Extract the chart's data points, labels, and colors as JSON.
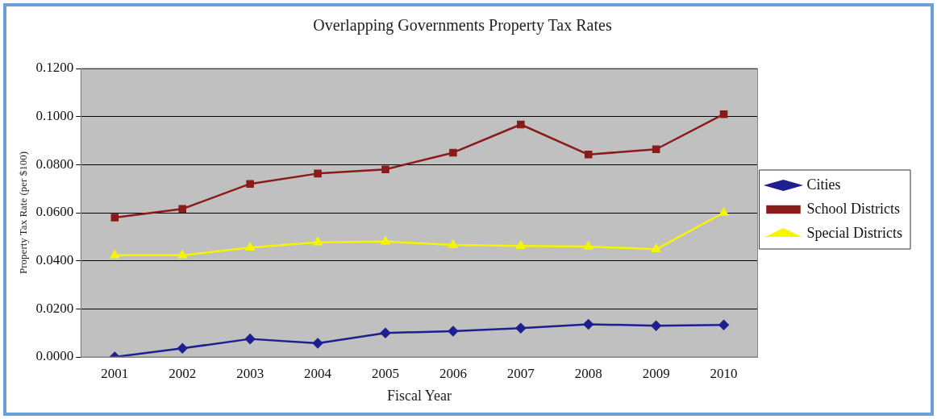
{
  "chart_data": {
    "type": "line",
    "title": "Overlapping Governments Property Tax Rates",
    "xlabel": "Fiscal Year",
    "ylabel": "Property Tax Rate (per $100)",
    "categories": [
      "2001",
      "2002",
      "2003",
      "2004",
      "2005",
      "2006",
      "2007",
      "2008",
      "2009",
      "2010"
    ],
    "series": [
      {
        "name": "Cities",
        "color": "#1f1f8f",
        "marker": "diamond",
        "values": [
          0.0,
          0.0036,
          0.0075,
          0.0057,
          0.01,
          0.0107,
          0.012,
          0.0136,
          0.013,
          0.0133
        ]
      },
      {
        "name": "School Districts",
        "color": "#8b1a1a",
        "marker": "square",
        "values": [
          0.058,
          0.0616,
          0.072,
          0.0763,
          0.078,
          0.085,
          0.0967,
          0.0842,
          0.0864,
          0.101
        ]
      },
      {
        "name": "Special Districts",
        "color": "#f5f500",
        "marker": "triangle",
        "values": [
          0.0423,
          0.0423,
          0.0455,
          0.0477,
          0.048,
          0.0466,
          0.0462,
          0.0459,
          0.0448,
          0.06
        ]
      }
    ],
    "ylim": [
      0,
      0.12
    ],
    "yticks": [
      {
        "value": 0,
        "label": "0.0000"
      },
      {
        "value": 0.02,
        "label": "0.0200"
      },
      {
        "value": 0.04,
        "label": "0.0400"
      },
      {
        "value": 0.06,
        "label": "0.0600"
      },
      {
        "value": 0.08,
        "label": "0.0800"
      },
      {
        "value": 0.1,
        "label": "0.1000"
      },
      {
        "value": 0.12,
        "label": "0.1200"
      }
    ],
    "grid": "y",
    "legend": "right"
  }
}
